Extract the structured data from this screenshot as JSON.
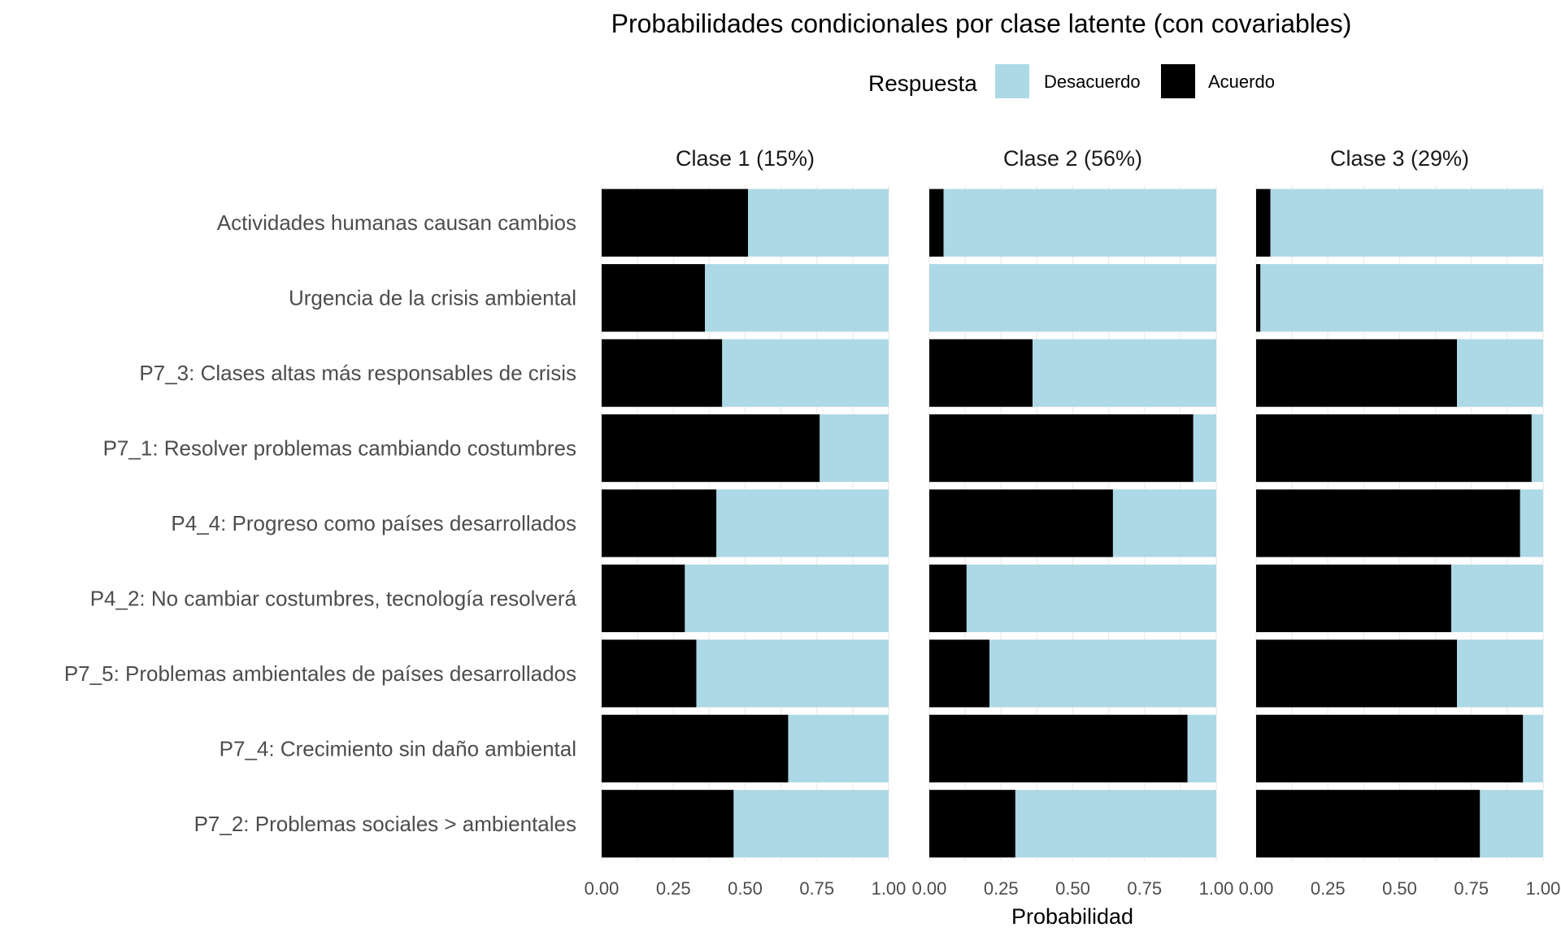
{
  "chart_data": {
    "type": "bar",
    "orientation": "horizontal",
    "stacked": true,
    "title": "Probabilidades condicionales por clase latente (con covariables)",
    "xlabel": "Probabilidad",
    "ylabel": "",
    "xlim": [
      0,
      1
    ],
    "x_ticks": [
      "0.00",
      "0.25",
      "0.50",
      "0.75",
      "1.00"
    ],
    "grid": true,
    "legend": {
      "title": "Respuesta",
      "position": "top",
      "entries": [
        {
          "name": "Desacuerdo",
          "color": "#add8e6"
        },
        {
          "name": "Acuerdo",
          "color": "#000000"
        }
      ]
    },
    "categories": [
      "Actividades humanas causan cambios",
      "Urgencia de la crisis ambiental",
      "P7_3: Clases altas más responsables de crisis",
      "P7_1: Resolver problemas cambiando costumbres",
      "P4_4: Progreso como países desarrollados",
      "P4_2: No cambiar costumbres, tecnología resolverá",
      "P7_5: Problemas ambientales de países desarrollados",
      "P7_4: Crecimiento sin daño ambiental",
      "P7_2: Problemas sociales > ambientales"
    ],
    "panels": [
      {
        "label": "Clase 1 (15%)",
        "series": [
          {
            "name": "Acuerdo",
            "values": [
              0.51,
              0.36,
              0.42,
              0.76,
              0.4,
              0.29,
              0.33,
              0.65,
              0.46
            ]
          },
          {
            "name": "Desacuerdo",
            "values": [
              0.49,
              0.64,
              0.58,
              0.24,
              0.6,
              0.71,
              0.67,
              0.35,
              0.54
            ]
          }
        ]
      },
      {
        "label": "Clase 2 (56%)",
        "series": [
          {
            "name": "Acuerdo",
            "values": [
              0.05,
              0.0,
              0.36,
              0.92,
              0.64,
              0.13,
              0.21,
              0.9,
              0.3
            ]
          },
          {
            "name": "Desacuerdo",
            "values": [
              0.95,
              1.0,
              0.64,
              0.08,
              0.36,
              0.87,
              0.79,
              0.1,
              0.7
            ]
          }
        ]
      },
      {
        "label": "Clase 3 (29%)",
        "series": [
          {
            "name": "Acuerdo",
            "values": [
              0.05,
              0.015,
              0.7,
              0.96,
              0.92,
              0.68,
              0.7,
              0.93,
              0.78
            ]
          },
          {
            "name": "Desacuerdo",
            "values": [
              0.95,
              0.985,
              0.3,
              0.04,
              0.08,
              0.32,
              0.3,
              0.07,
              0.22
            ]
          }
        ]
      }
    ]
  }
}
